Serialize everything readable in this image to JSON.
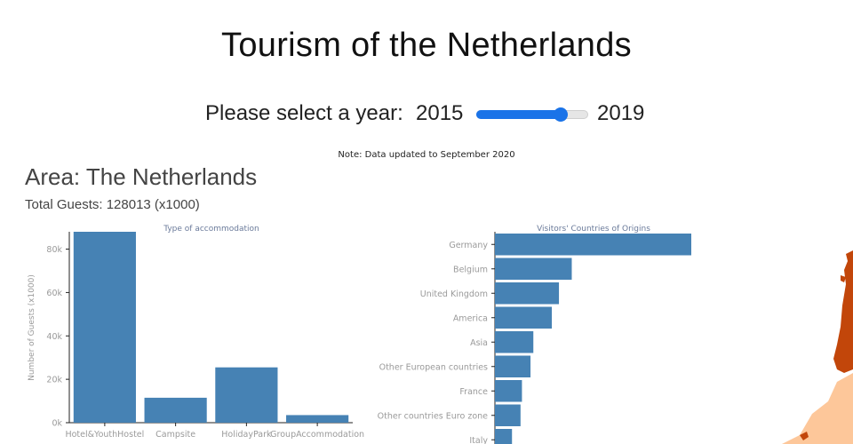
{
  "page": {
    "title": "Tourism of the Netherlands",
    "year_prompt": "Please select a year:",
    "slider": {
      "min_label": "2015",
      "max_label": "2019",
      "level": 0.75
    },
    "note": "Note: Data updated to September 2020",
    "area": "Area: The Netherlands",
    "total_guests": "Total Guests: 128013 (x1000)"
  },
  "colors": {
    "bar": "#4682b4",
    "slider_accent": "#1a73e8",
    "axis_text": "#9a9a9a",
    "subplot_title": "#6a7a9a",
    "map_dark": "#c2460a",
    "map_light": "#fdc79a"
  },
  "chart_data": [
    {
      "type": "bar",
      "title": "Type of accommodation",
      "ylabel": "Number of Guests (x1000)",
      "categories": [
        "Hotel&YouthHostel",
        "Campsite",
        "HolidayPark",
        "GroupAccommodation"
      ],
      "values": [
        88000,
        11500,
        25500,
        3500
      ],
      "yticks": [
        "0k",
        "20k",
        "40k",
        "60k",
        "80k"
      ],
      "ytick_values": [
        0,
        20000,
        40000,
        60000,
        80000
      ],
      "ylim": [
        0,
        88000
      ]
    },
    {
      "type": "bar",
      "orientation": "horizontal",
      "title": "Visitors' Countries of Origins",
      "categories": [
        "Germany",
        "Belgium",
        "United Kingdom",
        "America",
        "Asia",
        "Other European countries",
        "France",
        "Other countries Euro zone",
        "Italy"
      ],
      "values": [
        6900,
        2700,
        2250,
        2000,
        1350,
        1250,
        950,
        900,
        600
      ],
      "xlim": [
        0,
        6900
      ]
    }
  ],
  "map": {
    "icon": "netherlands-choropleth-map"
  }
}
